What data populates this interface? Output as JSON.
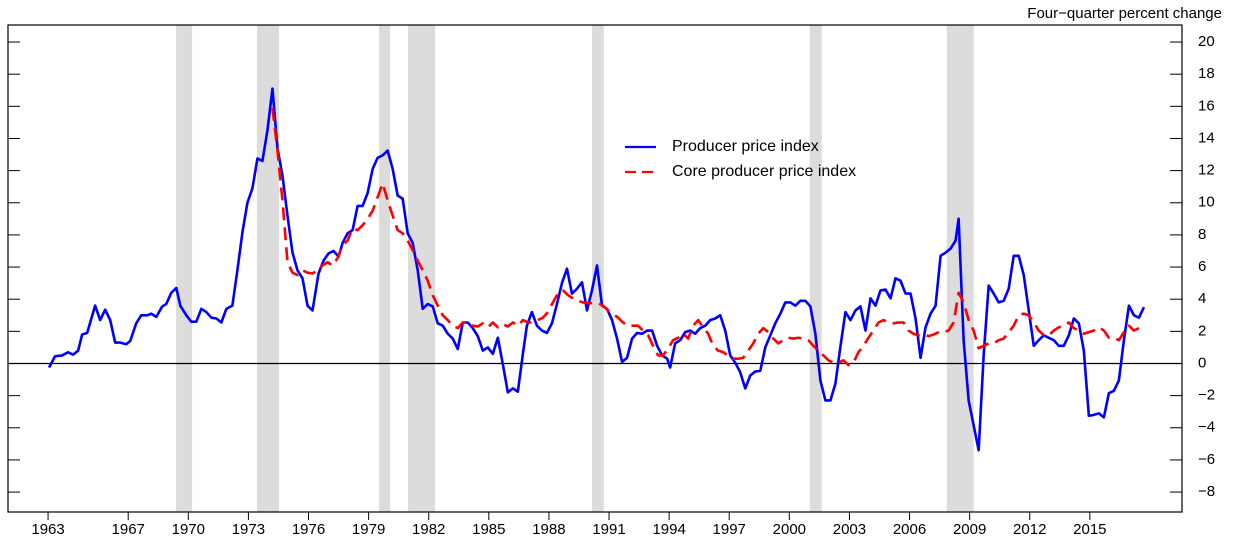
{
  "chart_data": {
    "type": "line",
    "axis_label": "Four−quarter percent change",
    "xlim": [
      1961.0,
      2019.6
    ],
    "xticks": [
      1963,
      1967,
      1970,
      1973,
      1976,
      1979,
      1982,
      1985,
      1988,
      1991,
      1994,
      1997,
      2000,
      2003,
      2006,
      2009,
      2012,
      2015
    ],
    "ylim": [
      -9.24,
      21.06
    ],
    "yticks": [
      {
        "value": -8,
        "label": "−8"
      },
      {
        "value": -6,
        "label": "−6"
      },
      {
        "value": -4,
        "label": "−4"
      },
      {
        "value": -2,
        "label": "−2"
      },
      0,
      2,
      4,
      6,
      8,
      10,
      12,
      14,
      16,
      18,
      20
    ],
    "recession_color": "#dcdcdc",
    "recessions": [
      [
        1969.39,
        1970.19
      ],
      [
        1973.43,
        1974.53
      ],
      [
        1979.52,
        1980.07
      ],
      [
        1980.97,
        1982.32
      ],
      [
        1990.15,
        1990.74
      ],
      [
        2001.02,
        2001.62
      ],
      [
        2007.86,
        2009.2
      ]
    ],
    "series": [
      {
        "name": "Producer price index",
        "color": "#0000ff",
        "dashed": false,
        "x": [
          1963.05,
          1963.35,
          1963.7,
          1964.0,
          1964.25,
          1964.5,
          1964.7,
          1964.95,
          1965.35,
          1965.6,
          1965.85,
          1966.1,
          1966.35,
          1966.6,
          1966.9,
          1967.1,
          1967.4,
          1967.65,
          1967.95,
          1968.15,
          1968.4,
          1968.7,
          1968.9,
          1969.15,
          1969.4,
          1969.6,
          1969.9,
          1970.15,
          1970.4,
          1970.65,
          1970.9,
          1971.15,
          1971.4,
          1971.65,
          1971.9,
          1972.2,
          1972.45,
          1972.7,
          1972.95,
          1973.2,
          1973.45,
          1973.7,
          1973.95,
          1974.2,
          1974.45,
          1974.7,
          1974.95,
          1975.2,
          1975.45,
          1975.7,
          1975.95,
          1976.2,
          1976.5,
          1976.75,
          1977.0,
          1977.25,
          1977.5,
          1977.7,
          1977.95,
          1978.2,
          1978.45,
          1978.7,
          1978.95,
          1979.2,
          1979.45,
          1979.7,
          1979.95,
          1980.2,
          1980.45,
          1980.7,
          1980.95,
          1981.2,
          1981.45,
          1981.7,
          1981.95,
          1982.2,
          1982.45,
          1982.7,
          1982.95,
          1983.2,
          1983.45,
          1983.7,
          1983.95,
          1984.2,
          1984.45,
          1984.7,
          1984.95,
          1985.2,
          1985.45,
          1985.7,
          1985.95,
          1986.2,
          1986.45,
          1986.7,
          1986.9,
          1987.15,
          1987.4,
          1987.65,
          1987.9,
          1988.15,
          1988.4,
          1988.65,
          1988.9,
          1989.15,
          1989.4,
          1989.65,
          1989.9,
          1990.15,
          1990.4,
          1990.65,
          1990.9,
          1991.15,
          1991.4,
          1991.65,
          1991.9,
          1992.15,
          1992.4,
          1992.65,
          1992.9,
          1993.15,
          1993.4,
          1993.65,
          1993.9,
          1994.05,
          1994.3,
          1994.55,
          1994.8,
          1995.05,
          1995.3,
          1995.55,
          1995.8,
          1996.05,
          1996.3,
          1996.55,
          1996.8,
          1997.05,
          1997.3,
          1997.55,
          1997.8,
          1998.05,
          1998.3,
          1998.55,
          1998.8,
          1999.05,
          1999.3,
          1999.55,
          1999.8,
          2000.05,
          2000.3,
          2000.55,
          2000.8,
          2001.05,
          2001.3,
          2001.55,
          2001.8,
          2002.05,
          2002.3,
          2002.55,
          2002.8,
          2003.05,
          2003.3,
          2003.55,
          2003.8,
          2004.05,
          2004.3,
          2004.55,
          2004.8,
          2005.05,
          2005.3,
          2005.55,
          2005.8,
          2006.05,
          2006.3,
          2006.55,
          2006.8,
          2007.05,
          2007.3,
          2007.55,
          2007.8,
          2008.05,
          2008.3,
          2008.45,
          2008.7,
          2008.95,
          2009.2,
          2009.45,
          2009.7,
          2009.95,
          2010.2,
          2010.45,
          2010.7,
          2010.95,
          2011.2,
          2011.45,
          2011.7,
          2011.95,
          2012.2,
          2012.45,
          2012.7,
          2012.95,
          2013.2,
          2013.45,
          2013.7,
          2013.95,
          2014.2,
          2014.45,
          2014.7,
          2014.95,
          2015.2,
          2015.45,
          2015.7,
          2015.95,
          2016.2,
          2016.45,
          2016.7,
          2016.95,
          2017.2,
          2017.45,
          2017.7
        ],
        "values": [
          -0.25,
          0.45,
          0.5,
          0.7,
          0.55,
          0.8,
          1.8,
          1.9,
          3.6,
          2.7,
          3.35,
          2.7,
          1.3,
          1.3,
          1.2,
          1.4,
          2.5,
          3.0,
          3.0,
          3.1,
          2.9,
          3.55,
          3.7,
          4.4,
          4.7,
          3.6,
          3.0,
          2.6,
          2.6,
          3.4,
          3.2,
          2.85,
          2.8,
          2.55,
          3.4,
          3.6,
          5.8,
          8.15,
          10.0,
          10.9,
          12.75,
          12.6,
          14.5,
          17.1,
          13.4,
          11.7,
          9.2,
          6.9,
          5.8,
          5.3,
          3.6,
          3.3,
          5.6,
          6.4,
          6.85,
          7.0,
          6.65,
          7.5,
          8.1,
          8.3,
          9.8,
          9.8,
          10.6,
          12.1,
          12.8,
          12.95,
          13.25,
          12.1,
          10.45,
          10.25,
          8.1,
          7.5,
          5.8,
          3.4,
          3.7,
          3.55,
          2.5,
          2.35,
          1.85,
          1.55,
          0.9,
          2.55,
          2.55,
          2.2,
          1.7,
          0.8,
          1.0,
          0.6,
          1.6,
          -0.05,
          -1.8,
          -1.55,
          -1.75,
          0.6,
          2.35,
          3.2,
          2.35,
          2.05,
          1.9,
          2.5,
          3.7,
          5.0,
          5.9,
          4.35,
          4.65,
          5.05,
          3.3,
          4.55,
          6.1,
          3.6,
          3.4,
          2.7,
          1.55,
          0.1,
          0.35,
          1.55,
          1.9,
          1.85,
          2.05,
          2.05,
          1.1,
          0.5,
          0.3,
          -0.25,
          1.25,
          1.45,
          1.95,
          2.05,
          1.85,
          2.2,
          2.35,
          2.7,
          2.8,
          3.0,
          2.05,
          0.5,
          0.05,
          -0.55,
          -1.55,
          -0.75,
          -0.5,
          -0.45,
          1.0,
          1.75,
          2.5,
          3.1,
          3.8,
          3.8,
          3.6,
          3.9,
          3.9,
          3.55,
          1.85,
          -1.05,
          -2.3,
          -2.3,
          -1.25,
          1.05,
          3.2,
          2.7,
          3.3,
          3.55,
          2.05,
          4.05,
          3.6,
          4.55,
          4.6,
          4.05,
          5.3,
          5.15,
          4.35,
          4.35,
          2.8,
          0.35,
          2.25,
          3.1,
          3.6,
          6.7,
          6.9,
          7.15,
          7.65,
          9.0,
          1.45,
          -2.3,
          -3.85,
          -5.4,
          0.5,
          4.85,
          4.35,
          3.8,
          3.9,
          4.65,
          6.7,
          6.7,
          5.5,
          3.3,
          1.1,
          1.45,
          1.75,
          1.6,
          1.45,
          1.1,
          1.1,
          1.75,
          2.8,
          2.5,
          0.8,
          -3.25,
          -3.2,
          -3.1,
          -3.35,
          -1.85,
          -1.7,
          -1.05,
          1.45,
          3.6,
          3.0,
          2.85,
          3.5
        ]
      },
      {
        "name": "Core producer price index",
        "color": "#ff0000",
        "dashed": true,
        "x": [
          1974.2,
          1974.45,
          1974.7,
          1974.95,
          1975.2,
          1975.45,
          1975.7,
          1975.95,
          1976.2,
          1976.45,
          1976.7,
          1976.95,
          1977.2,
          1977.45,
          1977.7,
          1977.95,
          1978.2,
          1978.45,
          1978.7,
          1978.95,
          1979.2,
          1979.45,
          1979.7,
          1979.95,
          1980.2,
          1980.45,
          1980.7,
          1980.95,
          1981.2,
          1981.45,
          1981.7,
          1981.95,
          1982.2,
          1982.45,
          1982.7,
          1982.95,
          1983.2,
          1983.45,
          1983.7,
          1983.95,
          1984.2,
          1984.45,
          1984.7,
          1984.95,
          1985.2,
          1985.45,
          1985.7,
          1985.95,
          1986.2,
          1986.45,
          1986.7,
          1986.95,
          1987.2,
          1987.45,
          1987.7,
          1987.95,
          1988.2,
          1988.45,
          1988.7,
          1988.95,
          1989.2,
          1989.45,
          1989.7,
          1989.95,
          1990.2,
          1990.45,
          1990.7,
          1990.95,
          1991.2,
          1991.45,
          1991.7,
          1991.95,
          1992.2,
          1992.45,
          1992.7,
          1992.95,
          1993.2,
          1993.45,
          1993.7,
          1993.95,
          1994.2,
          1994.45,
          1994.7,
          1994.95,
          1995.2,
          1995.45,
          1995.7,
          1995.95,
          1996.2,
          1996.45,
          1996.7,
          1996.95,
          1997.2,
          1997.45,
          1997.7,
          1997.95,
          1998.2,
          1998.45,
          1998.7,
          1998.95,
          1999.2,
          1999.45,
          1999.7,
          1999.95,
          2000.2,
          2000.45,
          2000.7,
          2000.95,
          2001.2,
          2001.45,
          2001.7,
          2001.95,
          2002.2,
          2002.45,
          2002.7,
          2002.95,
          2003.2,
          2003.45,
          2003.7,
          2003.95,
          2004.2,
          2004.45,
          2004.7,
          2004.95,
          2005.2,
          2005.45,
          2005.7,
          2005.95,
          2006.2,
          2006.45,
          2006.7,
          2006.95,
          2007.2,
          2007.45,
          2007.7,
          2007.95,
          2008.2,
          2008.45,
          2008.7,
          2008.95,
          2009.2,
          2009.45,
          2009.7,
          2009.95,
          2010.2,
          2010.45,
          2010.7,
          2010.95,
          2011.2,
          2011.45,
          2011.7,
          2011.95,
          2012.2,
          2012.45,
          2012.7,
          2012.95,
          2013.2,
          2013.45,
          2013.7,
          2013.95,
          2014.2,
          2014.45,
          2014.7,
          2014.95,
          2015.2,
          2015.45,
          2015.7,
          2015.95,
          2016.2,
          2016.45,
          2016.7,
          2016.95,
          2017.2,
          2017.45
        ],
        "values": [
          15.9,
          13.25,
          10.15,
          6.3,
          5.65,
          5.5,
          5.8,
          5.65,
          5.6,
          5.8,
          6.1,
          6.3,
          6.1,
          6.55,
          7.35,
          7.65,
          8.4,
          8.3,
          8.6,
          9.0,
          9.5,
          10.35,
          11.2,
          10.15,
          9.2,
          8.3,
          8.1,
          7.65,
          7.05,
          6.4,
          5.8,
          5.15,
          4.25,
          3.6,
          3.0,
          2.7,
          2.35,
          2.2,
          2.55,
          2.55,
          2.35,
          2.3,
          2.5,
          2.25,
          2.55,
          2.25,
          2.45,
          2.3,
          2.55,
          2.35,
          2.7,
          2.55,
          2.55,
          2.7,
          2.85,
          3.2,
          3.8,
          4.35,
          4.55,
          4.25,
          4.05,
          3.9,
          3.8,
          3.75,
          3.75,
          3.75,
          3.6,
          3.3,
          3.1,
          2.85,
          2.55,
          2.35,
          2.35,
          2.35,
          2.05,
          1.75,
          1.1,
          0.5,
          0.5,
          0.95,
          1.45,
          1.6,
          1.85,
          1.55,
          2.35,
          2.7,
          2.25,
          1.85,
          1.1,
          0.8,
          0.7,
          0.5,
          0.3,
          0.3,
          0.35,
          0.8,
          1.25,
          1.85,
          2.2,
          1.95,
          1.55,
          1.25,
          1.45,
          1.6,
          1.55,
          1.6,
          1.55,
          1.45,
          1.1,
          0.8,
          0.5,
          0.2,
          0.05,
          0.05,
          0.2,
          -0.1,
          0.05,
          0.7,
          1.1,
          1.6,
          2.05,
          2.55,
          2.7,
          2.55,
          2.5,
          2.55,
          2.55,
          2.05,
          1.85,
          1.75,
          1.8,
          1.7,
          1.8,
          1.95,
          1.95,
          2.05,
          2.55,
          4.4,
          3.8,
          2.7,
          2.05,
          0.95,
          1.1,
          1.25,
          1.25,
          1.45,
          1.55,
          1.95,
          2.35,
          3.0,
          3.1,
          3.0,
          2.55,
          2.05,
          1.75,
          1.75,
          2.05,
          2.25,
          2.35,
          2.55,
          2.2,
          2.05,
          1.85,
          1.95,
          2.05,
          2.25,
          2.05,
          1.6,
          1.6,
          1.45,
          1.95,
          2.35,
          2.05,
          2.2
        ]
      }
    ]
  }
}
